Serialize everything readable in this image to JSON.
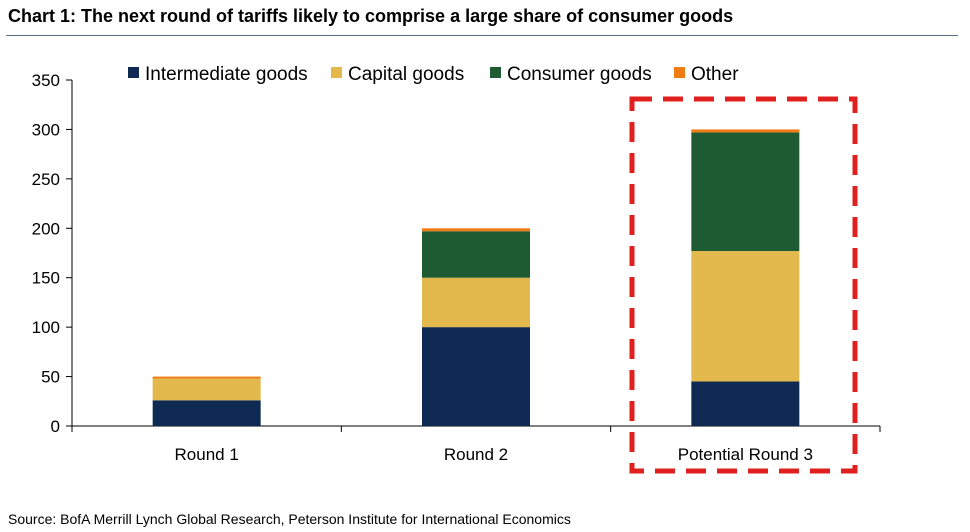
{
  "title": "Chart 1: The next round of tariffs likely to comprise a large share of consumer goods",
  "source": "Source: BofA Merrill Lynch Global Research, Peterson Institute for International Economics",
  "chart_data": {
    "type": "bar",
    "stacked": true,
    "categories": [
      "Round 1",
      "Round 2",
      "Potential Round 3"
    ],
    "series": [
      {
        "name": "Intermediate goods",
        "color": "#0f2a52",
        "values": [
          26,
          100,
          45
        ]
      },
      {
        "name": "Capital goods",
        "color": "#e3b84d",
        "values": [
          22,
          50,
          132
        ]
      },
      {
        "name": "Consumer goods",
        "color": "#1e5a32",
        "values": [
          0,
          47,
          120
        ]
      },
      {
        "name": "Other",
        "color": "#f07d14",
        "values": [
          2,
          3,
          3
        ]
      }
    ],
    "ylim": [
      0,
      350
    ],
    "yticks": [
      0,
      50,
      100,
      150,
      200,
      250,
      300,
      350
    ],
    "grid": false,
    "legend_position": "top",
    "highlight": {
      "category": "Potential Round 3",
      "style": "dashed-box",
      "color": "#e0201e"
    }
  }
}
